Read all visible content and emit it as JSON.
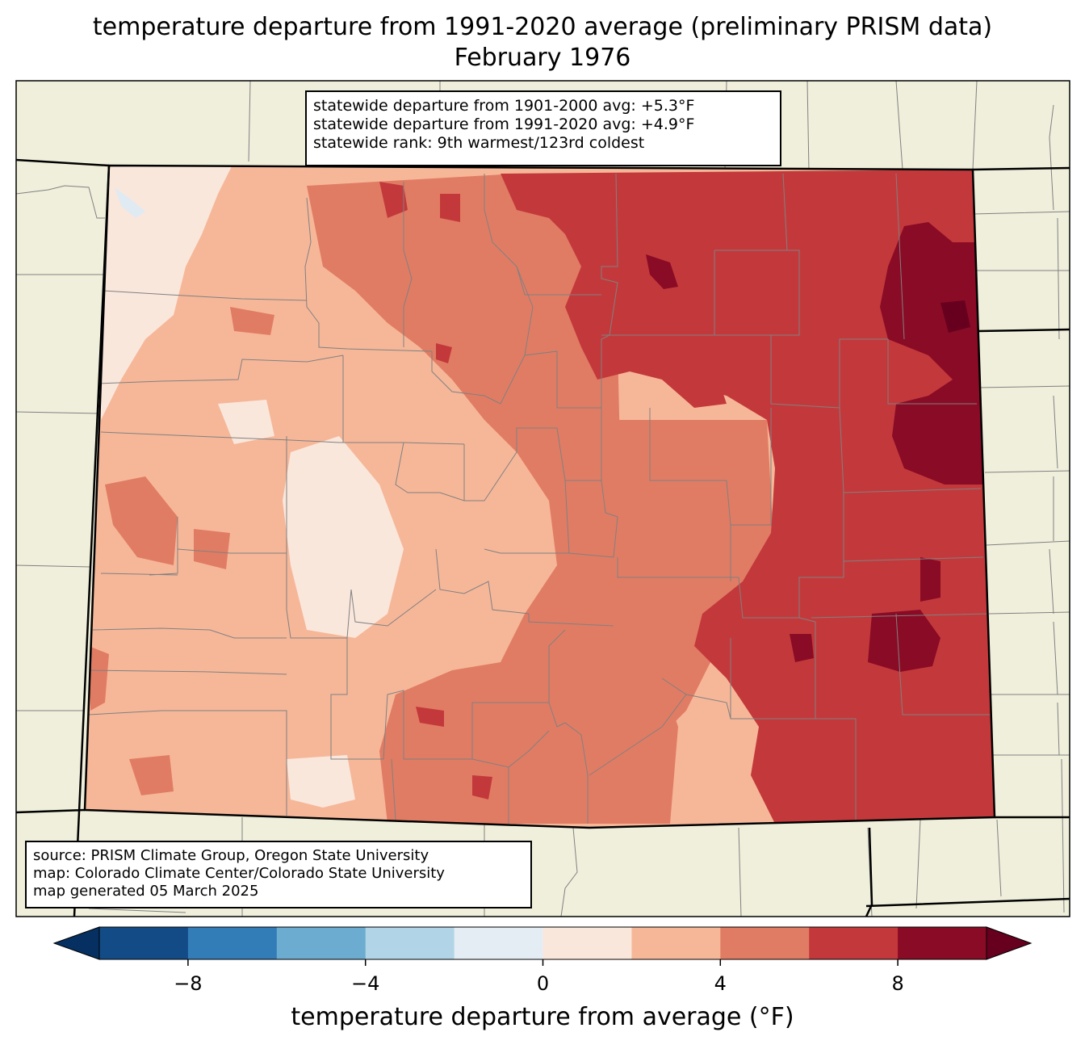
{
  "title": "temperature departure from 1991-2020 average (preliminary PRISM data)",
  "subtitle": "February 1976",
  "stats": {
    "line1": "statewide departure from 1901-2000 avg: +5.3°F",
    "line2": "statewide departure from 1991-2020 avg: +4.9°F",
    "line3": "statewide rank: 9th warmest/123rd coldest"
  },
  "source": {
    "line1": "source: PRISM Climate Group, Oregon State University",
    "line2": "map: Colorado Climate Center/Colorado State University",
    "line3": "map generated 05 March 2025"
  },
  "colorbar": {
    "title": "temperature departure from average (°F)",
    "ticks": [
      {
        "value": -8,
        "label": "−8"
      },
      {
        "value": -4,
        "label": "−4"
      },
      {
        "value": 0,
        "label": "0"
      },
      {
        "value": 4,
        "label": "4"
      },
      {
        "value": 8,
        "label": "8"
      }
    ],
    "bins": [
      {
        "from": -10,
        "to": -8,
        "color": "#134b87"
      },
      {
        "from": -8,
        "to": -6,
        "color": "#327db8"
      },
      {
        "from": -6,
        "to": -4,
        "color": "#6bacd0"
      },
      {
        "from": -4,
        "to": -2,
        "color": "#b1d4e6"
      },
      {
        "from": -2,
        "to": 0,
        "color": "#e4edf4"
      },
      {
        "from": 0,
        "to": 2,
        "color": "#fae7dc"
      },
      {
        "from": 2,
        "to": 4,
        "color": "#f6b799"
      },
      {
        "from": 4,
        "to": 6,
        "color": "#e17c64"
      },
      {
        "from": 6,
        "to": 8,
        "color": "#c3393b"
      },
      {
        "from": 8,
        "to": 10,
        "color": "#8a0b25"
      }
    ],
    "under_color": "#053061",
    "over_color": "#67001f"
  },
  "colors": {
    "land": "#f0efdc",
    "water": "#dfeaf3",
    "county_lines": "#808080",
    "state_lines": "#000000"
  }
}
